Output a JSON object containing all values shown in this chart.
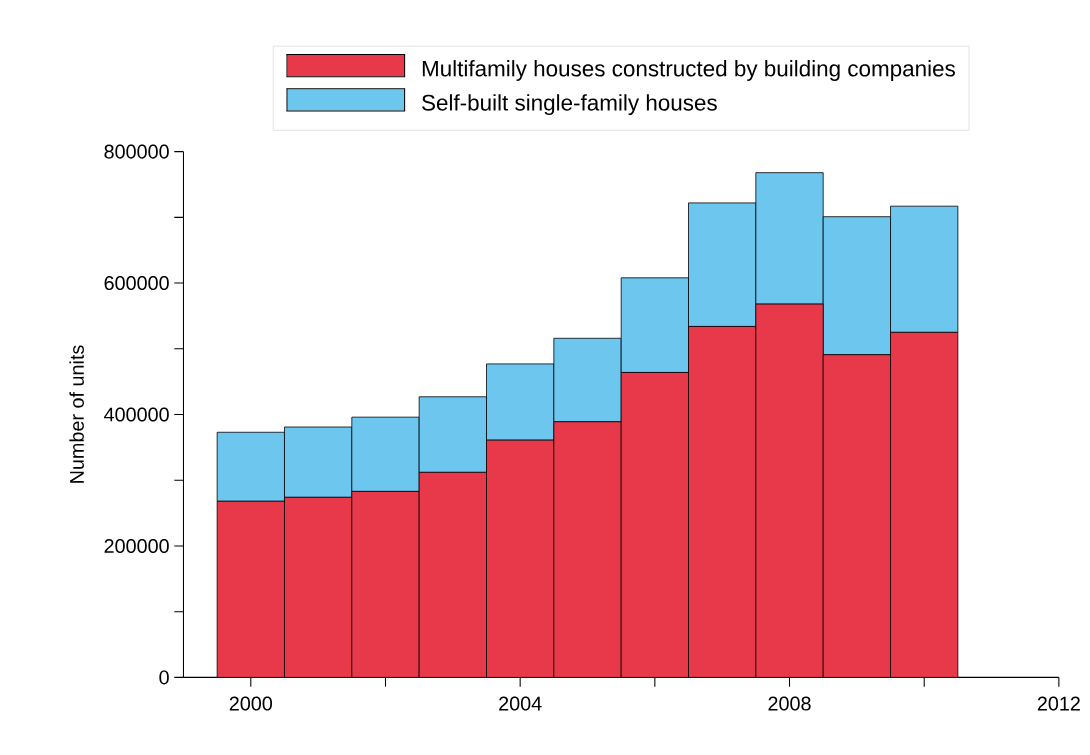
{
  "chart_data": {
    "type": "bar",
    "stacked": true,
    "ylabel": "Number of units",
    "x": [
      2000,
      2001,
      2002,
      2003,
      2004,
      2005,
      2006,
      2007,
      2008,
      2009,
      2010
    ],
    "series": [
      {
        "name": "Multifamily houses constructed by building companies",
        "color": "#e8394a",
        "values": [
          268000,
          274000,
          283000,
          312000,
          361000,
          389000,
          464000,
          534000,
          568000,
          491000,
          525000
        ]
      },
      {
        "name": "Self-built single-family houses",
        "color": "#6cc6ee",
        "values": [
          105000,
          107000,
          113000,
          115000,
          116000,
          127000,
          144000,
          188000,
          200000,
          210000,
          192000
        ]
      }
    ],
    "xlim": [
      1999,
      2012
    ],
    "xticks": [
      2000,
      {
        "value": 2002,
        "label": null
      },
      2004,
      {
        "value": 2006,
        "label": null
      },
      2008,
      {
        "value": 2010,
        "label": null
      },
      2012
    ],
    "ylim": [
      0,
      800000
    ],
    "yticks": [
      0,
      {
        "value": 100000,
        "label": null
      },
      200000,
      {
        "value": 300000,
        "label": null
      },
      400000,
      {
        "value": 500000,
        "label": null
      },
      600000,
      {
        "value": 700000,
        "label": null
      },
      800000
    ],
    "legend": "top",
    "grid": false
  }
}
